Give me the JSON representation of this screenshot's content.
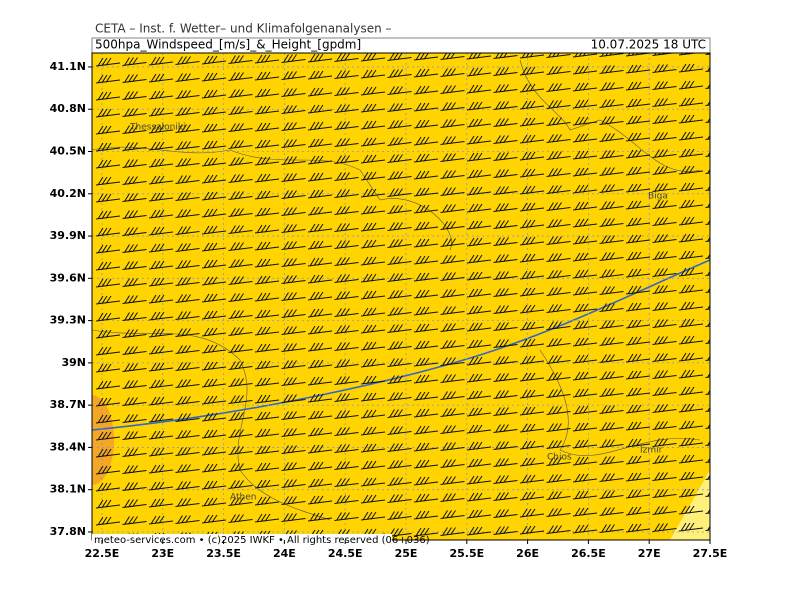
{
  "header": {
    "line1": "CETA – Inst. f. Wetter– und Klimafolgenanalysen –",
    "title": "500hpa_Windspeed_[m/s]_&_Height_[gpdm]",
    "valid": "10.07.2025 18 UTC"
  },
  "axes": {
    "xlim": [
      22.418,
      27.5
    ],
    "ylim": [
      37.743,
      41.199
    ],
    "xticks": [
      {
        "value": 22.5,
        "label": "22.5E"
      },
      {
        "value": 23,
        "label": "23E"
      },
      {
        "value": 23.5,
        "label": "23.5E"
      },
      {
        "value": 24,
        "label": "24E"
      },
      {
        "value": 24.5,
        "label": "24.5E"
      },
      {
        "value": 25,
        "label": "25E"
      },
      {
        "value": 25.5,
        "label": "25.5E"
      },
      {
        "value": 26,
        "label": "26E"
      },
      {
        "value": 26.5,
        "label": "26.5E"
      },
      {
        "value": 27,
        "label": "27E"
      },
      {
        "value": 27.5,
        "label": "27.5E"
      }
    ],
    "yticks": [
      {
        "value": 41.1,
        "label": "41.1N"
      },
      {
        "value": 40.8,
        "label": "40.8N"
      },
      {
        "value": 40.5,
        "label": "40.5N"
      },
      {
        "value": 40.2,
        "label": "40.2N"
      },
      {
        "value": 39.9,
        "label": "39.9N"
      },
      {
        "value": 39.6,
        "label": "39.6N"
      },
      {
        "value": 39.3,
        "label": "39.3N"
      },
      {
        "value": 39,
        "label": "39N"
      },
      {
        "value": 38.7,
        "label": "38.7N"
      },
      {
        "value": 38.4,
        "label": "38.4N"
      },
      {
        "value": 38.1,
        "label": "38.1N"
      },
      {
        "value": 37.8,
        "label": "37.8N"
      }
    ]
  },
  "places": [
    "Thessaloniki",
    "Biga",
    "Chios",
    "Izmir",
    "Athen"
  ],
  "footer": "meteo-services.com • (c)2025 IWKF • All rights reserved (06+036)"
}
